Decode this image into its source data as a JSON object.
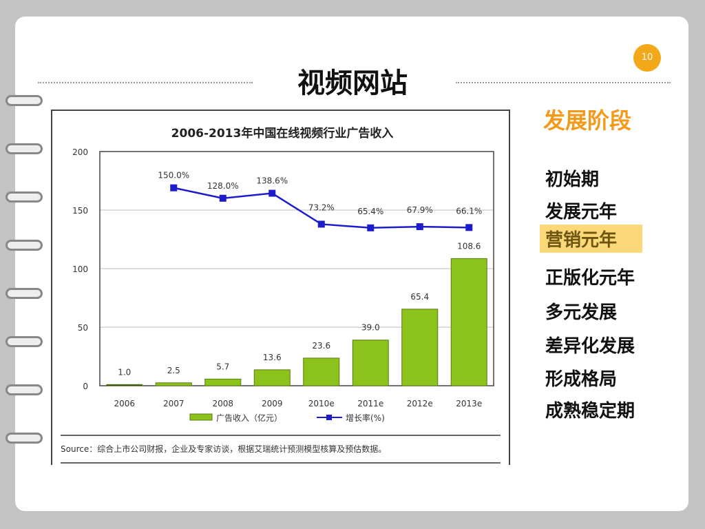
{
  "slide": {
    "page_number": "10",
    "title": "视频网站"
  },
  "stages": {
    "heading": "发展阶段",
    "items": [
      "初始期",
      "发展元年",
      "营销元年",
      "正版化元年",
      "多元发展",
      "差异化发展",
      "形成格局",
      "成熟稳定期"
    ],
    "highlighted_index": 2,
    "highlight_color": "#fcd978"
  },
  "chart_data": {
    "type": "bar+line",
    "title": "2006-2013年中国在线视频行业广告收入",
    "categories": [
      "2006",
      "2007",
      "2008",
      "2009",
      "2010e",
      "2011e",
      "2012e",
      "2013e"
    ],
    "ylim": [
      0,
      200
    ],
    "yticks": [
      "0",
      "50",
      "100",
      "150",
      "200"
    ],
    "grid": true,
    "legend_position": "bottom",
    "series": [
      {
        "name": "广告收入（亿元）",
        "type": "bar",
        "color": "#8cc21c",
        "values": [
          1.0,
          2.5,
          5.7,
          13.6,
          23.6,
          39.0,
          65.4,
          108.6
        ],
        "labels": [
          "1.0",
          "2.5",
          "5.7",
          "13.6",
          "23.6",
          "39.0",
          "65.4",
          "108.6"
        ]
      },
      {
        "name": "增长率(%)",
        "type": "line",
        "color": "#1c1ccc",
        "values": [
          null,
          150.0,
          128.0,
          138.6,
          73.2,
          65.4,
          67.9,
          66.1
        ],
        "labels": [
          "",
          "150.0%",
          "128.0%",
          "138.6%",
          "73.2%",
          "65.4%",
          "67.9%",
          "66.1%"
        ]
      }
    ],
    "source": "Source：综合上市公司财报，企业及专家访谈，根据艾瑞统计预测模型核算及预估数据。"
  }
}
